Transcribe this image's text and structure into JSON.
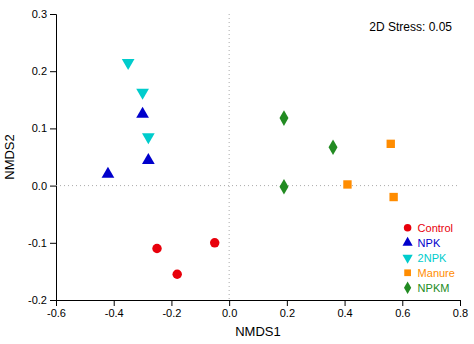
{
  "chart_data": {
    "type": "scatter",
    "xlabel": "NMDS1",
    "ylabel": "NMDS2",
    "annotation": "2D Stress: 0.05",
    "series": [
      {
        "name": "Control",
        "color": "#e8000b",
        "marker": "circle",
        "x": [
          -0.25,
          -0.18,
          -0.05
        ],
        "values": [
          -0.11,
          -0.155,
          -0.1
        ]
      },
      {
        "name": "NPK",
        "color": "#0000cc",
        "marker": "triangle-up",
        "x": [
          -0.42,
          -0.3,
          -0.28
        ],
        "values": [
          0.02,
          0.125,
          0.044
        ]
      },
      {
        "name": "2NPK",
        "color": "#00cccc",
        "marker": "triangle-down",
        "x": [
          -0.35,
          -0.28,
          -0.3
        ],
        "values": [
          0.215,
          0.085,
          0.163
        ]
      },
      {
        "name": "Manure",
        "color": "#ff8c00",
        "marker": "square",
        "x": [
          0.41,
          0.56,
          0.57
        ],
        "values": [
          0.002,
          0.073,
          -0.02
        ]
      },
      {
        "name": "NPKM",
        "color": "#228b22",
        "marker": "diamond",
        "x": [
          0.19,
          0.36,
          0.19
        ],
        "values": [
          -0.002,
          0.067,
          0.118
        ]
      }
    ],
    "reference_lines": [
      {
        "axis": "x",
        "value": 0,
        "color": "#aaaaaa",
        "line_style": "dotted"
      },
      {
        "axis": "y",
        "value": 0,
        "color": "#aaaaaa",
        "line_style": "dotted"
      }
    ],
    "xlim": [
      -0.6,
      0.8
    ],
    "ylim": [
      -0.2,
      0.3
    ],
    "xticks": [
      -0.6,
      -0.4,
      -0.2,
      {
        "value": 0,
        "label": "0.0"
      },
      0.2,
      0.4,
      0.6,
      0.8
    ],
    "yticks": [
      -0.2,
      -0.1,
      {
        "value": 0,
        "label": "0.0"
      },
      0.1,
      0.2,
      0.3
    ],
    "grid": false,
    "legend": "lower right"
  }
}
